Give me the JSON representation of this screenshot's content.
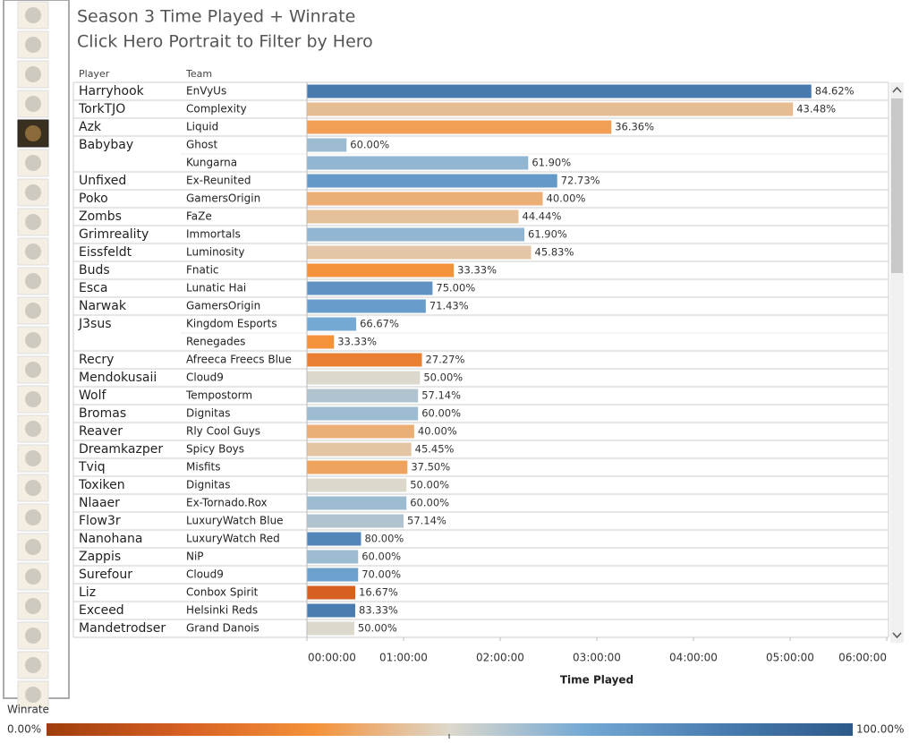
{
  "chart_data": {
    "type": "bar",
    "orientation": "horizontal",
    "title": "Season 3 Time Played + Winrate",
    "subtitle": "Click Hero Portrait to Filter by Hero",
    "columns": [
      "Player",
      "Team"
    ],
    "categories": [
      "Harryhook",
      "TorkTJO",
      "Azk",
      "Babybay",
      null,
      "Unfixed",
      "Poko",
      "Zombs",
      "Grimreality",
      "Eissfeldt",
      "Buds",
      "Esca",
      "Narwak",
      "J3sus",
      null,
      "Recry",
      "Mendokusaii",
      "Wolf",
      "Bromas",
      "Reaver",
      "Dreamkazper",
      "Tviq",
      "Toxiken",
      "Nlaaer",
      "Flow3r",
      "Nanohana",
      "Zappis",
      "Surefour",
      "Liz",
      "Exceed",
      "Mandetrodser"
    ],
    "teams": [
      "EnVyUs",
      "Complexity",
      "Liquid",
      "Ghost",
      "Kungarna",
      "Ex-Reunited",
      "GamersOrigin",
      "FaZe",
      "Immortals",
      "Luminosity",
      "Fnatic",
      "Lunatic Hai",
      "GamersOrigin",
      "Kingdom Esports",
      "Renegades",
      "Afreeca Freecs Blue",
      "Cloud9",
      "Tempostorm",
      "Dignitas",
      "Rly Cool Guys",
      "Spicy Boys",
      "Misfits",
      "Dignitas",
      "Ex-Tornado.Rox",
      "LuxuryWatch Blue",
      "LuxuryWatch Red",
      "NiP",
      "Cloud9",
      "Conbox Spirit",
      "Helsinki Reds",
      "Grand Danois"
    ],
    "values": [
      5.22,
      5.03,
      3.15,
      0.41,
      2.29,
      2.59,
      2.44,
      2.19,
      2.25,
      2.32,
      1.52,
      1.3,
      1.23,
      0.51,
      0.28,
      1.19,
      1.17,
      1.15,
      1.15,
      1.11,
      1.08,
      1.04,
      1.03,
      1.03,
      1.0,
      0.56,
      0.53,
      0.53,
      0.5,
      0.5,
      0.49
    ],
    "winrate": {
      "values": [
        84.62,
        43.48,
        36.36,
        60.0,
        61.9,
        72.73,
        40.0,
        44.44,
        61.9,
        45.83,
        33.33,
        75.0,
        71.43,
        66.67,
        33.33,
        27.27,
        50.0,
        57.14,
        60.0,
        40.0,
        45.45,
        37.5,
        50.0,
        60.0,
        57.14,
        80.0,
        60.0,
        70.0,
        16.67,
        83.33,
        50.0
      ],
      "value_labels": [
        "84.62%",
        "43.48%",
        "36.36%",
        "60.00%",
        "61.90%",
        "72.73%",
        "40.00%",
        "44.44%",
        "61.90%",
        "45.83%",
        "33.33%",
        "75.00%",
        "71.43%",
        "66.67%",
        "33.33%",
        "27.27%",
        "50.00%",
        "57.14%",
        "60.00%",
        "40.00%",
        "45.45%",
        "37.50%",
        "50.00%",
        "60.00%",
        "57.14%",
        "80.00%",
        "60.00%",
        "70.00%",
        "16.67%",
        "83.33%",
        "50.00%"
      ]
    },
    "xlabel": "Time Played",
    "xlim": [
      0,
      6
    ],
    "xticks": [
      {
        "value": 0,
        "label": "00:00:00"
      },
      {
        "value": 1,
        "label": "01:00:00"
      },
      {
        "value": 2,
        "label": "02:00:00"
      },
      {
        "value": 3,
        "label": "03:00:00"
      },
      {
        "value": 4,
        "label": "04:00:00"
      },
      {
        "value": 5,
        "label": "05:00:00"
      },
      {
        "value": 6,
        "label": "06:00:00"
      }
    ],
    "colorbar": {
      "title": "Winrate",
      "ticks": [
        {
          "value": 0,
          "label": "0.00%"
        },
        {
          "value": 100,
          "label": "100.00%"
        }
      ],
      "colors": [
        "#9e3d0c",
        "#d65f22",
        "#f4923a",
        "#ddd8cc",
        "#74a9d4",
        "#4b7db1",
        "#2c5a8a"
      ]
    }
  }
}
